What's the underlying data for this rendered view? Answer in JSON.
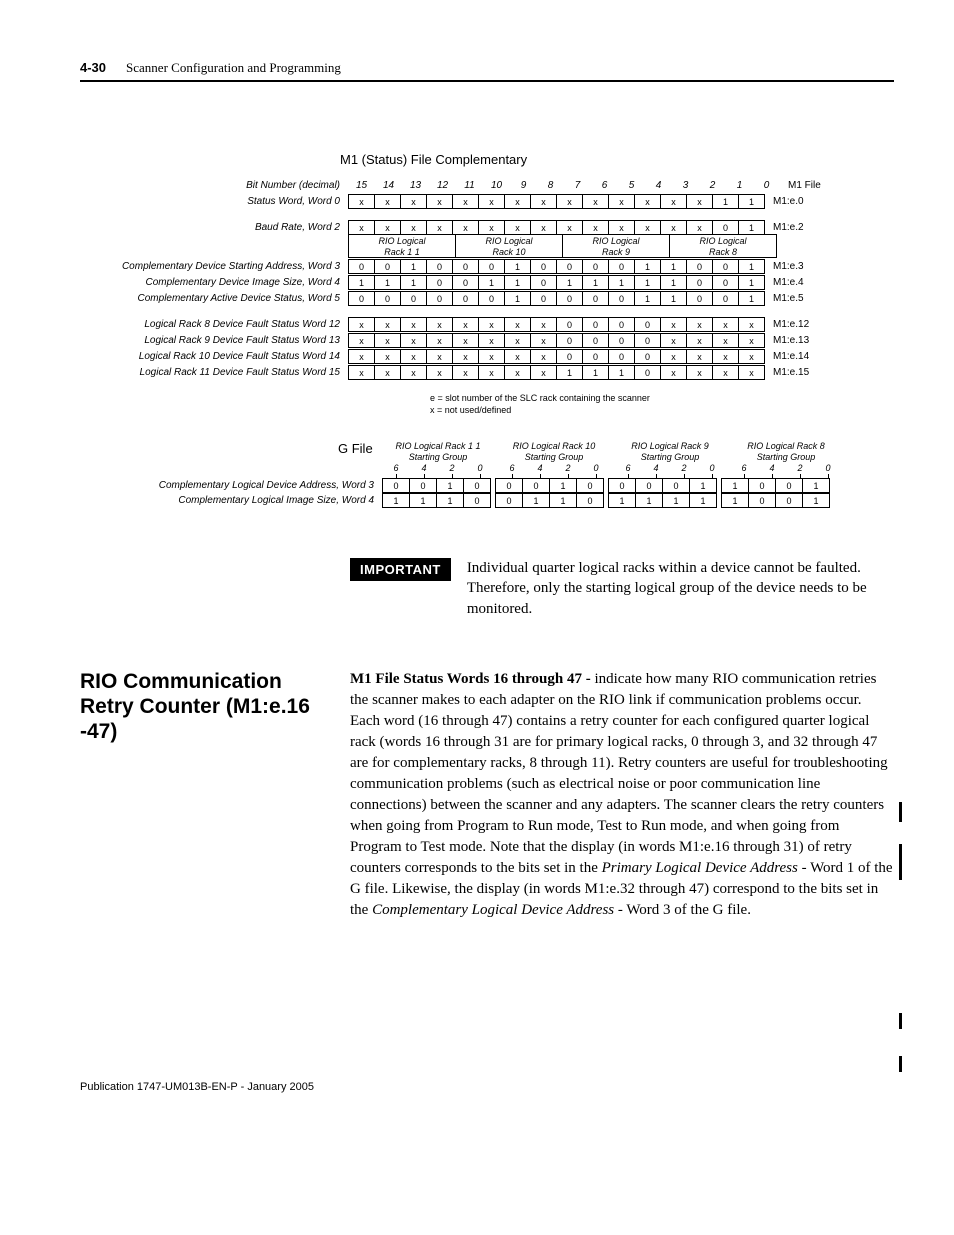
{
  "header": {
    "page_num": "4-30",
    "title": "Scanner Configuration and Programming"
  },
  "diagram": {
    "title": "M1 (Status) File Complementary",
    "bit_header_label": "Bit Number (decimal)",
    "bits": [
      "15",
      "14",
      "13",
      "12",
      "11",
      "10",
      "9",
      "8",
      "7",
      "6",
      "5",
      "4",
      "3",
      "2",
      "1",
      "0"
    ],
    "m1file_label": "M1 File",
    "rows": [
      {
        "label": "Status Word, Word 0",
        "cells": [
          "x",
          "x",
          "x",
          "x",
          "x",
          "x",
          "x",
          "x",
          "x",
          "x",
          "x",
          "x",
          "x",
          "x",
          "1",
          "1"
        ],
        "m1": "M1:e.0"
      }
    ],
    "baud_row": {
      "label": "Baud Rate, Word 2",
      "cells": [
        "x",
        "x",
        "x",
        "x",
        "x",
        "x",
        "x",
        "x",
        "x",
        "x",
        "x",
        "x",
        "x",
        "x",
        "0",
        "1"
      ],
      "m1": "M1:e.2"
    },
    "rack_spans": [
      "RIO Logical Rack 1 1",
      "RIO Logical Rack 10",
      "RIO Logical Rack 9",
      "RIO Logical Rack 8"
    ],
    "comp_rows": [
      {
        "label": "Complementary Device Starting Address, Word 3",
        "cells": [
          "0",
          "0",
          "1",
          "0",
          "0",
          "0",
          "1",
          "0",
          "0",
          "0",
          "0",
          "1",
          "1",
          "0",
          "0",
          "1"
        ],
        "m1": "M1:e.3"
      },
      {
        "label": "Complementary Device Image Size, Word 4",
        "cells": [
          "1",
          "1",
          "1",
          "0",
          "0",
          "1",
          "1",
          "0",
          "1",
          "1",
          "1",
          "1",
          "1",
          "0",
          "0",
          "1"
        ],
        "m1": "M1:e.4"
      },
      {
        "label": "Complementary Active Device Status, Word 5",
        "cells": [
          "0",
          "0",
          "0",
          "0",
          "0",
          "0",
          "1",
          "0",
          "0",
          "0",
          "0",
          "1",
          "1",
          "0",
          "0",
          "1"
        ],
        "m1": "M1:e.5"
      }
    ],
    "fault_rows": [
      {
        "label": "Logical Rack 8 Device Fault Status Word 12",
        "cells": [
          "x",
          "x",
          "x",
          "x",
          "x",
          "x",
          "x",
          "x",
          "0",
          "0",
          "0",
          "0",
          "x",
          "x",
          "x",
          "x"
        ],
        "m1": "M1:e.12"
      },
      {
        "label": "Logical Rack 9 Device Fault Status Word 13",
        "cells": [
          "x",
          "x",
          "x",
          "x",
          "x",
          "x",
          "x",
          "x",
          "0",
          "0",
          "0",
          "0",
          "x",
          "x",
          "x",
          "x"
        ],
        "m1": "M1:e.13"
      },
      {
        "label": "Logical Rack 10 Device Fault Status Word 14",
        "cells": [
          "x",
          "x",
          "x",
          "x",
          "x",
          "x",
          "x",
          "x",
          "0",
          "0",
          "0",
          "0",
          "x",
          "x",
          "x",
          "x"
        ],
        "m1": "M1:e.14"
      },
      {
        "label": "Logical  Rack  11 Device Fault Status Word 15",
        "cells": [
          "x",
          "x",
          "x",
          "x",
          "x",
          "x",
          "x",
          "x",
          "1",
          "1",
          "1",
          "0",
          "x",
          "x",
          "x",
          "x"
        ],
        "m1": "M1:e.15"
      }
    ],
    "footnote1": "e = slot number of the SLC rack containing the scanner",
    "footnote2": "x = not used/defined"
  },
  "gfile": {
    "title": "G File",
    "rack_headers": [
      "RIO Logical Rack 1   1\nStarting Group",
      "RIO Logical Rack 10\nStarting Group",
      "RIO Logical Rack 9\nStarting Group",
      "RIO Logical Rack 8\nStarting Group"
    ],
    "nums": [
      "6",
      "4",
      "2",
      "0",
      "6",
      "4",
      "2",
      "0",
      "6",
      "4",
      "2",
      "0",
      "6",
      "4",
      "2",
      "0"
    ],
    "rows": [
      {
        "label": "Complementary Logical Device Address, Word 3",
        "groups": [
          [
            "0",
            "0",
            "1",
            "0"
          ],
          [
            "0",
            "0",
            "1",
            "0"
          ],
          [
            "0",
            "0",
            "0",
            "1"
          ],
          [
            "1",
            "0",
            "0",
            "1"
          ]
        ]
      },
      {
        "label": "Complementary Logical Image Size, Word 4",
        "groups": [
          [
            "1",
            "1",
            "1",
            "0"
          ],
          [
            "0",
            "1",
            "1",
            "0"
          ],
          [
            "1",
            "1",
            "1",
            "1"
          ],
          [
            "1",
            "0",
            "0",
            "1"
          ]
        ]
      }
    ]
  },
  "important": {
    "tag": "IMPORTANT",
    "text": "Individual quarter logical racks within a device cannot be faulted. Therefore, only the starting logical group of the device needs to be monitored."
  },
  "section": {
    "heading": "RIO Communication Retry Counter (M1:e.16 -47)",
    "body_lead": "M1 File Status Words 16 through 47 - ",
    "body_rest": "indicate how many RIO communication retries the scanner makes to each adapter on the RIO link if communication problems occur. Each word (16 through 47) contains a retry counter for each configured quarter logical rack (words 16 through 31 are for primary logical racks, 0 through 3, and 32 through 47 are for complementary racks, 8 through 11). Retry counters are useful for troubleshooting communication problems (such as electrical noise or poor communication line connections) between the scanner and any adapters. The scanner clears the retry counters when going from Program to Run mode, Test to Run mode, and when going from Program to Test mode. Note that the display (in words M1:e.16 through 31) of retry counters corresponds to the bits set in the ",
    "italic1": "Primary Logical Device Address",
    "mid1": " - Word 1 of the G file. Likewise, the display (in words M1:e.32 through 47) correspond to the bits set in the ",
    "italic2": "Complementary Logical Device Address",
    "mid2": " - Word 3 of the G file."
  },
  "footer": "Publication 1747-UM013B-EN-P - January 2005"
}
